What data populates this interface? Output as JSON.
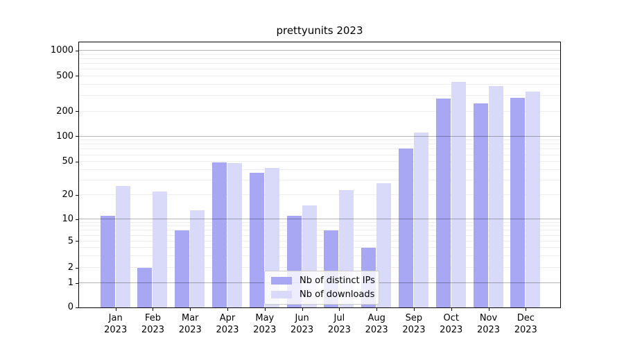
{
  "chart_data": {
    "type": "bar",
    "title": "prettyunits 2023",
    "categories": [
      "Jan 2023",
      "Feb 2023",
      "Mar 2023",
      "Apr 2023",
      "May 2023",
      "Jun 2023",
      "Jul 2023",
      "Aug 2023",
      "Sep 2023",
      "Oct 2023",
      "Nov 2023",
      "Dec 2023"
    ],
    "series": [
      {
        "name": "Nb of distinct IPs",
        "color": "#a7a7f3",
        "values": [
          11,
          2,
          7,
          49,
          37,
          11,
          7,
          4,
          72,
          281,
          246,
          286
        ]
      },
      {
        "name": "Nb of downloads",
        "color": "#d9d9f9",
        "values": [
          26,
          22,
          13,
          48,
          42,
          15,
          23,
          28,
          112,
          430,
          386,
          334
        ]
      }
    ],
    "y_axis": {
      "scale": "log-like",
      "tick_values": [
        0,
        1,
        2,
        5,
        10,
        20,
        50,
        100,
        200,
        500,
        1000
      ],
      "tick_labels": [
        "0",
        "1",
        "2",
        "5",
        "10",
        "20",
        "50",
        "100",
        "200",
        "500",
        "1000"
      ],
      "grid": true
    },
    "x_axis": {
      "tick_labels_line2": "2023"
    },
    "legend": {
      "position": "bottom-center",
      "entries": [
        "Nb of distinct IPs",
        "Nb of downloads"
      ]
    }
  }
}
